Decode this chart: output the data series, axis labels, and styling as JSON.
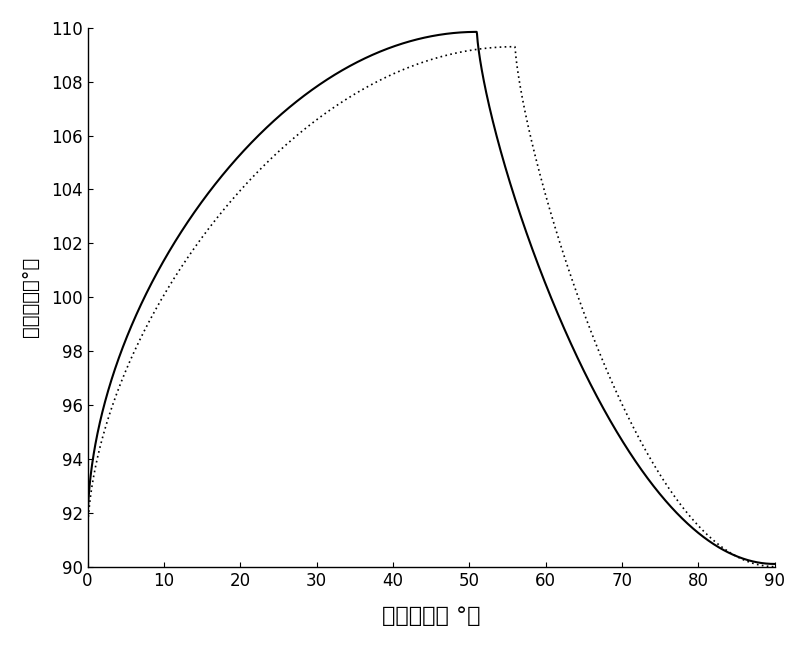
{
  "title": "",
  "xlabel": "光入射角（ °）",
  "ylabel": "声入射角（°）",
  "xlim": [
    0,
    90
  ],
  "ylim": [
    90,
    110
  ],
  "xticks": [
    0,
    10,
    20,
    30,
    40,
    50,
    60,
    70,
    80,
    90
  ],
  "yticks": [
    90,
    92,
    94,
    96,
    98,
    100,
    102,
    104,
    106,
    108,
    110
  ],
  "solid_color": "#000000",
  "dotted_color": "#000000",
  "background_color": "#ffffff",
  "xlabel_fontsize": 16,
  "ylabel_fontsize": 14,
  "tick_fontsize": 12,
  "solid_linewidth": 1.5,
  "dotted_linewidth": 1.2,
  "solid_peak_x": 51,
  "solid_peak_y": 109.85,
  "solid_start_y": 91.5,
  "solid_end_y": 90.1,
  "dotted_peak_x": 56,
  "dotted_peak_y": 109.3,
  "dotted_start_y": 91.1,
  "dotted_end_y": 90.0
}
